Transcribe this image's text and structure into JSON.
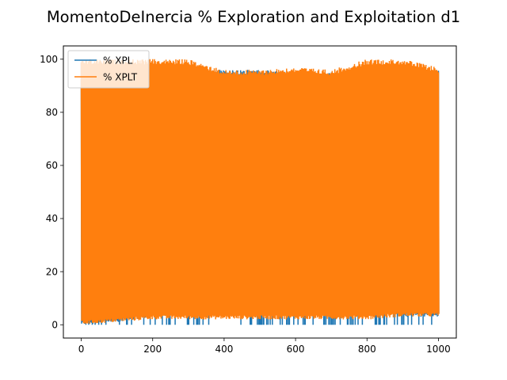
{
  "chart_data": {
    "type": "line",
    "title": "MomentoDeInercia % Exploration and Exploitation d1",
    "xlabel": "",
    "ylabel": "",
    "xlim": [
      -50,
      1050
    ],
    "ylim": [
      -5,
      105
    ],
    "xticks": [
      0,
      200,
      400,
      600,
      800,
      1000
    ],
    "yticks": [
      0,
      20,
      40,
      60,
      80,
      100
    ],
    "legend": {
      "placement": "top-left"
    },
    "series": [
      {
        "name": "% XPL",
        "color": "#1f77b4",
        "x_range": [
          0,
          1000
        ],
        "low_envelope": {
          "x": [
            0,
            100,
            200,
            300,
            400,
            470,
            500,
            550,
            600,
            650,
            700,
            750,
            800,
            820,
            850,
            880,
            900,
            950,
            1000
          ],
          "y": [
            0,
            1,
            3,
            4,
            5,
            6,
            8,
            8,
            6,
            6,
            5,
            5,
            4,
            9,
            11,
            4,
            3,
            3,
            3
          ]
        },
        "high_envelope": {
          "x": [
            0,
            20,
            50,
            100,
            200,
            300,
            400,
            500,
            600,
            700,
            800,
            900,
            1000
          ],
          "y": [
            100,
            98,
            97,
            97,
            97,
            96,
            96,
            96,
            95,
            95,
            95,
            95,
            96
          ]
        },
        "dip_to_zero": true
      },
      {
        "name": "% XPLT",
        "color": "#ff7f0e",
        "x_range": [
          0,
          1000
        ],
        "low_envelope": {
          "x": [
            0,
            100,
            200,
            300,
            400,
            500,
            600,
            700,
            800,
            900,
            1000
          ],
          "y": [
            0,
            1,
            2,
            2,
            2,
            2,
            2,
            2,
            2,
            3,
            3
          ]
        },
        "high_envelope": {
          "x": [
            0,
            100,
            200,
            300,
            400,
            500,
            600,
            700,
            800,
            900,
            1000
          ],
          "y": [
            100,
            100,
            100,
            100,
            96,
            96,
            97,
            96,
            100,
            100,
            97
          ]
        }
      }
    ]
  }
}
